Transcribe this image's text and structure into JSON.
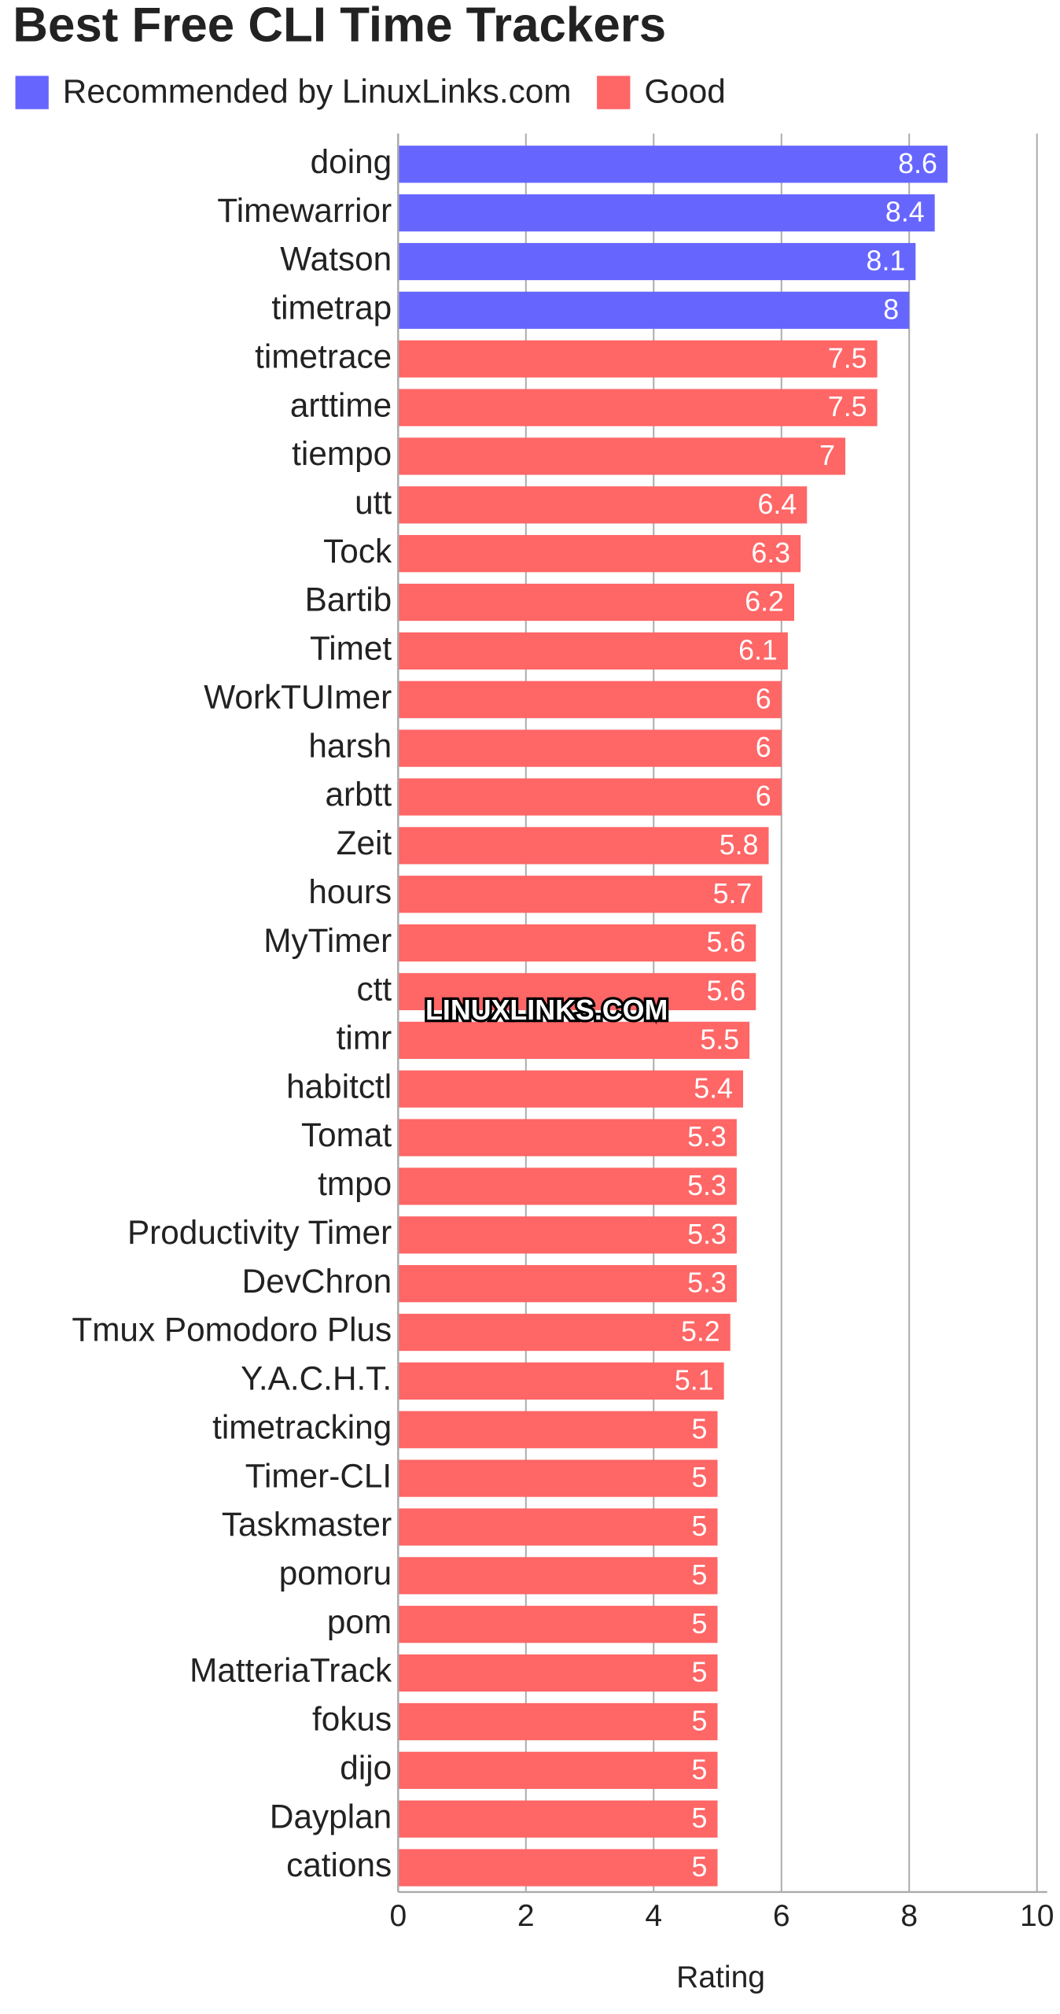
{
  "chart_data": {
    "type": "bar",
    "orientation": "horizontal",
    "title": "Best Free CLI Time Trackers",
    "x_label": "Rating",
    "watermark": "LINUXLINKS.COM",
    "categories": [
      "doing",
      "Timewarrior",
      "Watson",
      "timetrap",
      "timetrace",
      "arttime",
      "tiempo",
      "utt",
      "Tock",
      "Bartib",
      "Timet",
      "WorkTUImer",
      "harsh",
      "arbtt",
      "Zeit",
      "hours",
      "MyTimer",
      "ctt",
      "timr",
      "habitctl",
      "Tomat",
      "tmpo",
      "Productivity Timer",
      "DevChron",
      "Tmux Pomodoro Plus",
      "Y.A.C.H.T.",
      "timetracking",
      "Timer-CLI",
      "Taskmaster",
      "pomoru",
      "pom",
      "MatteriaTrack",
      "fokus",
      "dijo",
      "Dayplan",
      "cations"
    ],
    "series": [
      {
        "name": "Recommended by LinuxLinks.com",
        "color": "#6666ff",
        "values": [
          8.6,
          8.4,
          8.1,
          8,
          null,
          null,
          null,
          null,
          null,
          null,
          null,
          null,
          null,
          null,
          null,
          null,
          null,
          null,
          null,
          null,
          null,
          null,
          null,
          null,
          null,
          null,
          null,
          null,
          null,
          null,
          null,
          null,
          null,
          null,
          null,
          null
        ]
      },
      {
        "name": "Good",
        "color": "#ff6666",
        "values": [
          null,
          null,
          null,
          null,
          7.5,
          7.5,
          7,
          6.4,
          6.3,
          6.2,
          6.1,
          6,
          6,
          6,
          5.8,
          5.7,
          5.6,
          5.6,
          5.5,
          5.4,
          5.3,
          5.3,
          5.3,
          5.3,
          5.2,
          5.1,
          5,
          5,
          5,
          5,
          5,
          5,
          5,
          5,
          5,
          5
        ]
      }
    ],
    "xlim": [
      0,
      10
    ],
    "xticks": [
      0,
      2,
      4,
      6,
      8,
      10
    ],
    "grid": true
  }
}
